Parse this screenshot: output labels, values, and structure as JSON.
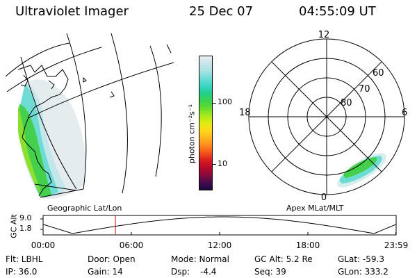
{
  "header": {
    "instrument": "Ultraviolet Imager",
    "date": "25 Dec 07",
    "time": "04:55:09 UT"
  },
  "colorbar": {
    "unit_label": "photon cm⁻²s⁻¹",
    "ticks": [
      "100",
      "10"
    ],
    "colors": [
      "#e8eef0",
      "#c8e4ea",
      "#a8e2e4",
      "#6fdcd6",
      "#39d4c8",
      "#22d08a",
      "#3bd24e",
      "#66dc2e",
      "#a6e81e",
      "#e0ec12",
      "#ffd818",
      "#ffb41e",
      "#ff8a1e",
      "#f4561c",
      "#d81e1e",
      "#b80a2a",
      "#8a0a3c",
      "#4a0a50",
      "#1a0a3c"
    ]
  },
  "left_panel": {
    "caption": "Geographic Lat/Lon"
  },
  "right_panel": {
    "caption": "Apex MLat/MLT",
    "mlt_labels": {
      "top": "12",
      "left": "18",
      "right": "6",
      "bottom": "0"
    },
    "lat_labels": [
      "60",
      "70",
      "80"
    ]
  },
  "altitude_plot": {
    "ylabel": "GC Alt",
    "ymax_label": "9.0",
    "ymin_label": "1.8",
    "x_ticks": [
      "00:00",
      "06:00",
      "12:00",
      "18:00",
      "23:59"
    ],
    "current_time_hours": 4.92,
    "marker_color": "#d01010"
  },
  "status": {
    "flt": "Flt: LBHL",
    "ip": "IP: 36.0",
    "door": "Door: Open",
    "gain": "Gain: 14",
    "mode": "Mode: Normal",
    "dsp_label": "Dsp:",
    "dsp_value": "-4.4",
    "gcalt": "GC Alt: 5.2 Re",
    "seq": "Seq: 39",
    "glat": "GLat: -59.3",
    "glon": "GLon: 333.2"
  }
}
